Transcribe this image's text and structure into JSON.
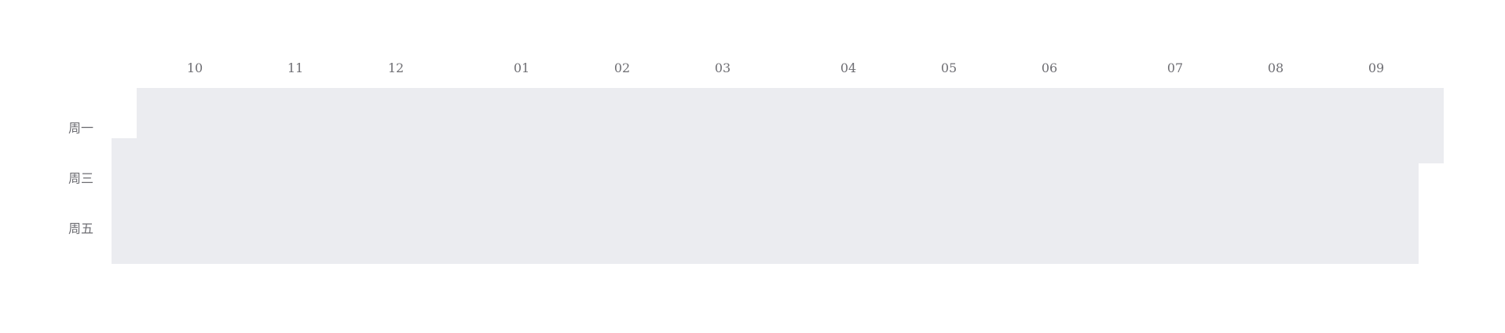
{
  "chart_data": {
    "type": "heatmap",
    "subtype": "calendar",
    "months": [
      "10",
      "11",
      "12",
      "01",
      "02",
      "03",
      "04",
      "05",
      "06",
      "07",
      "08",
      "09"
    ],
    "weekday_labels": [
      "周一",
      "周三",
      "周五"
    ],
    "cell_color": "#ebecf0",
    "label_color": "#6e6e73",
    "values": []
  }
}
